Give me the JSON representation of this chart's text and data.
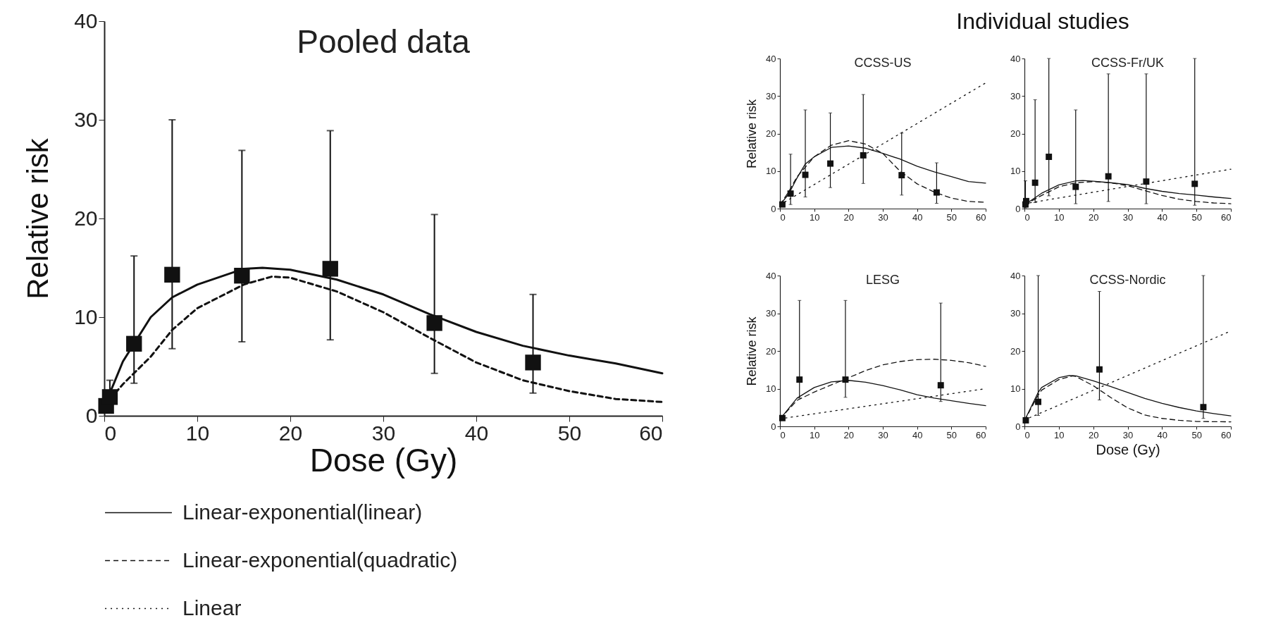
{
  "chart_data": [
    {
      "type": "line",
      "title": "Pooled data",
      "xlabel": "Dose (Gy)",
      "ylabel": "Relative risk",
      "xlim": [
        0,
        60
      ],
      "ylim": [
        0,
        40
      ],
      "xticks": [
        0,
        10,
        20,
        30,
        40,
        50,
        60
      ],
      "yticks": [
        0,
        10,
        20,
        30,
        40
      ],
      "legend": "bottom",
      "series": [
        {
          "type": "scatter",
          "color": "#111111",
          "marker": "square",
          "x": [
            0.2,
            0.6,
            3.2,
            7.3,
            14.8,
            24.3,
            35.5,
            46.1
          ],
          "values": [
            1.0,
            1.9,
            7.3,
            14.3,
            14.2,
            14.9,
            9.4,
            5.4
          ],
          "errors": [
            null,
            [
              1.9,
              3.6
            ],
            [
              3.3,
              16.2
            ],
            [
              6.8,
              30
            ],
            [
              7.5,
              26.9
            ],
            [
              7.7,
              28.9
            ],
            [
              4.3,
              20.4
            ],
            [
              2.3,
              12.3
            ]
          ]
        },
        {
          "name": "Linear-exponential(linear)",
          "color": "#111111",
          "line_style": "solid",
          "x": [
            0,
            1,
            2,
            3.2,
            5,
            7.3,
            10,
            15,
            17,
            20,
            25,
            30,
            35,
            40,
            45,
            50,
            55,
            60
          ],
          "values": [
            1.0,
            3.2,
            5.5,
            7.3,
            10.0,
            12.0,
            13.3,
            14.9,
            15.0,
            14.8,
            13.8,
            12.3,
            10.3,
            8.5,
            7.1,
            6.1,
            5.3,
            4.3
          ]
        },
        {
          "name": "Linear-exponential(quadratic)",
          "color": "#111111",
          "line_style": "dashed",
          "x": [
            0,
            2,
            5,
            7.3,
            10,
            15,
            18,
            20,
            25,
            30,
            35,
            40,
            45,
            50,
            55,
            60
          ],
          "values": [
            1.0,
            3.2,
            6.0,
            8.7,
            10.9,
            13.3,
            14.1,
            14.0,
            12.6,
            10.5,
            7.9,
            5.4,
            3.6,
            2.5,
            1.7,
            1.4
          ]
        },
        {
          "name": "Linear",
          "color": "#111111",
          "line_style": "dotted"
        }
      ]
    },
    {
      "type": "line",
      "title": "CCSS-US",
      "ylabel": "Relative risk",
      "xlim": [
        0,
        60
      ],
      "ylim": [
        0,
        40
      ],
      "xticks": [
        0,
        10,
        20,
        30,
        40,
        50,
        60
      ],
      "yticks": [
        0,
        10,
        20,
        30,
        40
      ],
      "annotations": [
        "Individual studies"
      ],
      "series": [
        {
          "type": "scatter",
          "color": "#111111",
          "marker": "square",
          "x": [
            0.7,
            3.1,
            7.4,
            14.7,
            24.3,
            35.5,
            45.7
          ],
          "values": [
            1.1,
            4.0,
            9.0,
            12.0,
            14.2,
            8.9,
            4.3
          ],
          "errors": [
            null,
            [
              1.1,
              14.5
            ],
            [
              3.1,
              26.3
            ],
            [
              5.6,
              25.5
            ],
            [
              6.7,
              30.4
            ],
            [
              3.6,
              20.1
            ],
            [
              1.4,
              12.2
            ]
          ]
        },
        {
          "color": "#111111",
          "line_style": "solid",
          "x": [
            0,
            2.5,
            5,
            7.4,
            10,
            15,
            20,
            25,
            30,
            35,
            40,
            45,
            50,
            55,
            60
          ],
          "values": [
            1.0,
            3.8,
            8.2,
            11.9,
            13.8,
            16.3,
            16.7,
            16.1,
            14.7,
            13.2,
            11.3,
            9.8,
            8.5,
            7.2,
            6.8
          ]
        },
        {
          "color": "#111111",
          "line_style": "dashed",
          "x": [
            0,
            2.5,
            5,
            10,
            15,
            20,
            25,
            30,
            35,
            40,
            45,
            50,
            55,
            60
          ],
          "values": [
            1.0,
            4.4,
            8.5,
            13.8,
            16.9,
            18.1,
            17.2,
            14.7,
            10.0,
            6.6,
            4.4,
            2.8,
            1.9,
            1.7
          ]
        },
        {
          "color": "#111111",
          "line_style": "dotted",
          "x": [
            0,
            24,
            60
          ],
          "values": [
            1.0,
            14.0,
            33.5
          ]
        }
      ]
    },
    {
      "type": "line",
      "title": "CCSS-Fr/UK",
      "xlim": [
        0,
        60
      ],
      "ylim": [
        0,
        40
      ],
      "xticks": [
        0,
        10,
        20,
        30,
        40,
        50,
        60
      ],
      "yticks": [
        0,
        10,
        20,
        30,
        40
      ],
      "series": [
        {
          "type": "scatter",
          "color": "#111111",
          "marker": "square",
          "x": [
            0.3,
            0.5,
            3.1,
            7.1,
            14.9,
            24.4,
            35.4,
            49.5
          ],
          "values": [
            1.1,
            2.0,
            6.9,
            13.8,
            5.8,
            8.6,
            7.2,
            6.6
          ],
          "errors": [
            [
              0.2,
              7.4
            ],
            null,
            [
              1.6,
              29.0
            ],
            [
              3.4,
              40
            ],
            [
              1.3,
              26.3
            ],
            [
              1.9,
              35.9
            ],
            [
              1.3,
              35.9
            ],
            [
              0.9,
              40
            ]
          ]
        },
        {
          "color": "#111111",
          "line_style": "solid",
          "x": [
            0,
            5,
            10,
            15,
            17,
            20,
            25,
            30,
            35,
            40,
            45,
            50,
            55,
            60
          ],
          "values": [
            1.0,
            4.1,
            6.3,
            7.4,
            7.5,
            7.3,
            6.9,
            6.4,
            5.4,
            4.6,
            4.0,
            3.6,
            3.1,
            2.7
          ]
        },
        {
          "color": "#111111",
          "line_style": "dashed",
          "x": [
            0,
            5,
            10,
            15,
            20,
            25,
            30,
            35,
            40,
            45,
            50,
            55,
            60
          ],
          "values": [
            1.0,
            3.5,
            5.8,
            6.9,
            7.2,
            6.9,
            6.1,
            4.8,
            3.5,
            2.5,
            1.9,
            1.5,
            1.3
          ]
        },
        {
          "color": "#111111",
          "line_style": "dotted",
          "x": [
            0,
            60
          ],
          "values": [
            1.3,
            10.5
          ]
        }
      ]
    },
    {
      "type": "line",
      "title": "LESG",
      "ylabel": "Relative risk",
      "xlim": [
        0,
        60
      ],
      "ylim": [
        0,
        40
      ],
      "xticks": [
        0,
        10,
        20,
        30,
        40,
        50,
        60
      ],
      "yticks": [
        0,
        10,
        20,
        30,
        40
      ],
      "series": [
        {
          "type": "scatter",
          "color": "#111111",
          "marker": "square",
          "x": [
            0.7,
            5.7,
            19.1,
            46.9
          ],
          "values": [
            2.2,
            12.4,
            12.4,
            10.9
          ],
          "errors": [
            null,
            [
              7.5,
              33.4
            ],
            [
              7.7,
              33.4
            ],
            [
              6.6,
              32.7
            ]
          ]
        },
        {
          "color": "#111111",
          "line_style": "solid",
          "x": [
            0,
            5,
            10,
            15,
            20,
            25,
            30,
            35,
            40,
            45,
            50,
            55,
            60
          ],
          "values": [
            1.9,
            7.5,
            10.3,
            11.8,
            12.2,
            11.7,
            10.8,
            9.7,
            8.4,
            7.5,
            6.8,
            6.1,
            5.5
          ]
        },
        {
          "color": "#111111",
          "line_style": "dashed",
          "x": [
            0,
            5,
            10,
            20,
            25,
            30,
            35,
            40,
            45,
            50,
            55,
            60
          ],
          "values": [
            2.0,
            6.9,
            9.1,
            12.9,
            14.8,
            16.3,
            17.2,
            17.7,
            17.8,
            17.5,
            16.9,
            15.9
          ]
        },
        {
          "color": "#111111",
          "line_style": "dotted",
          "x": [
            0,
            60
          ],
          "values": [
            2.0,
            10.0
          ]
        }
      ]
    },
    {
      "type": "line",
      "title": "CCSS-Nordic",
      "xlabel": "Dose (Gy)",
      "xlim": [
        0,
        60
      ],
      "ylim": [
        0,
        40
      ],
      "xticks": [
        0,
        10,
        20,
        30,
        40,
        50,
        60
      ],
      "yticks": [
        0,
        10,
        20,
        30,
        40
      ],
      "series": [
        {
          "type": "scatter",
          "color": "#111111",
          "marker": "square",
          "x": [
            0.4,
            4.0,
            21.8,
            52.0
          ],
          "values": [
            1.6,
            6.5,
            15.1,
            5.1
          ],
          "errors": [
            null,
            [
              2.9,
              40
            ],
            [
              7.0,
              35.8
            ],
            [
              2.1,
              40
            ]
          ]
        },
        {
          "color": "#111111",
          "line_style": "solid",
          "x": [
            0,
            4,
            5,
            10,
            13,
            15,
            20,
            25,
            30,
            35,
            40,
            45,
            50,
            55,
            60
          ],
          "values": [
            1.5,
            9.0,
            10.3,
            12.9,
            13.5,
            13.4,
            12.1,
            10.6,
            9.0,
            7.4,
            6.1,
            5.0,
            4.1,
            3.4,
            2.8
          ]
        },
        {
          "color": "#111111",
          "line_style": "dashed",
          "x": [
            0,
            4,
            5,
            10,
            14,
            15,
            20,
            25,
            30,
            35,
            40,
            45,
            50,
            60
          ],
          "values": [
            1.5,
            8.3,
            9.6,
            12.4,
            13.4,
            13.2,
            10.8,
            7.7,
            4.9,
            3.0,
            2.1,
            1.6,
            1.3,
            1.2
          ]
        },
        {
          "color": "#111111",
          "line_style": "dotted",
          "x": [
            0,
            60
          ],
          "values": [
            1.7,
            25.3
          ]
        }
      ]
    }
  ]
}
